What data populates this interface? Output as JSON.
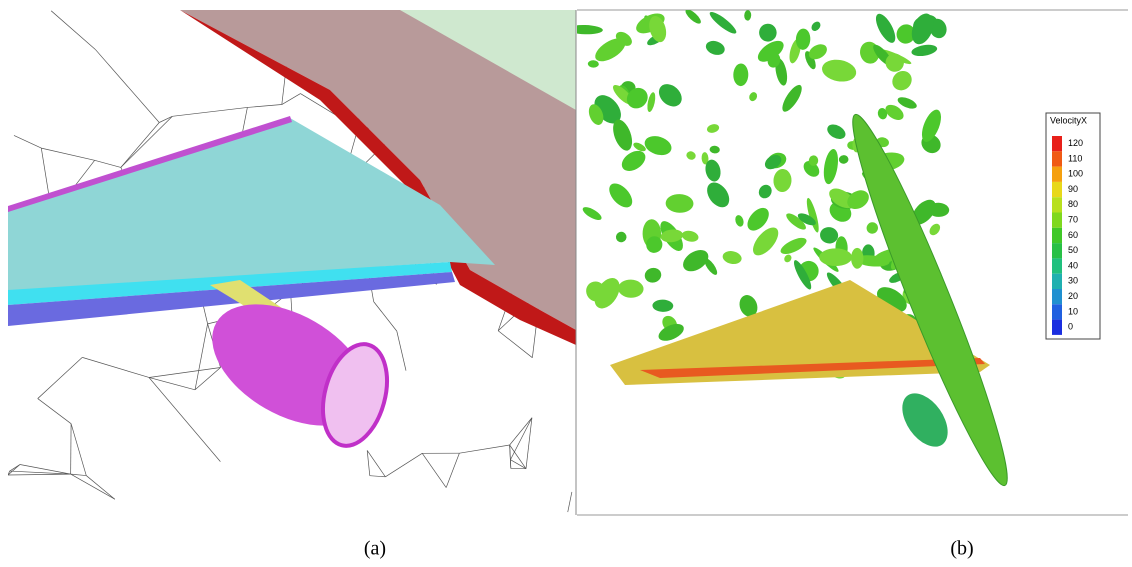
{
  "panels": [
    {
      "label": "(a)"
    },
    {
      "label": "(b)"
    }
  ],
  "legend": {
    "title": "VelocityX",
    "ticks": [
      120,
      110,
      100,
      90,
      80,
      70,
      60,
      50,
      40,
      30,
      20,
      10,
      0
    ],
    "colors": [
      "#e8201a",
      "#f05a14",
      "#f5a00f",
      "#e8d81a",
      "#b8e01e",
      "#7fd81e",
      "#40c828",
      "#28c046",
      "#20c07e",
      "#20b0b0",
      "#2090d0",
      "#2060e0",
      "#1a2ee0"
    ]
  }
}
